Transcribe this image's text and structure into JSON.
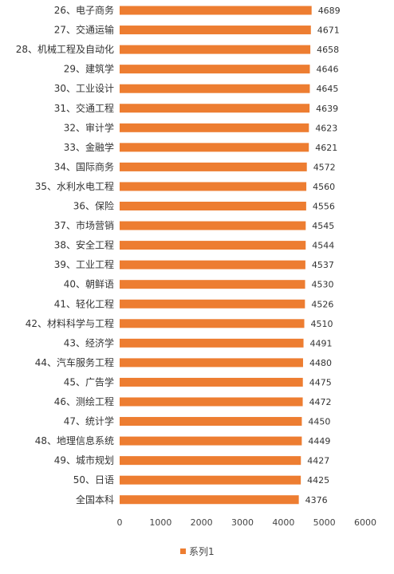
{
  "chart_data": {
    "type": "bar",
    "orientation": "horizontal",
    "categories": [
      "26、电子商务",
      "27、交通运输",
      "28、机械工程及自动化",
      "29、建筑学",
      "30、工业设计",
      "31、交通工程",
      "32、审计学",
      "33、金融学",
      "34、国际商务",
      "35、水利水电工程",
      "36、保险",
      "37、市场营销",
      "38、安全工程",
      "39、工业工程",
      "40、朝鲜语",
      "41、轻化工程",
      "42、材料科学与工程",
      "43、经济学",
      "44、汽车服务工程",
      "45、广告学",
      "46、测绘工程",
      "47、统计学",
      "48、地理信息系统",
      "49、城市规划",
      "50、日语",
      "全国本科"
    ],
    "series": [
      {
        "name": "系列1",
        "values": [
          4689,
          4671,
          4658,
          4646,
          4645,
          4639,
          4623,
          4621,
          4572,
          4560,
          4556,
          4545,
          4544,
          4537,
          4530,
          4526,
          4510,
          4491,
          4480,
          4475,
          4472,
          4450,
          4449,
          4427,
          4425,
          4376
        ]
      }
    ],
    "xlim": [
      0,
      6000
    ],
    "xticks": [
      0,
      1000,
      2000,
      3000,
      4000,
      5000,
      6000
    ],
    "grid": false,
    "legend": "bottom",
    "colors": {
      "bar": "#ED7D31",
      "text": "#333333"
    }
  }
}
